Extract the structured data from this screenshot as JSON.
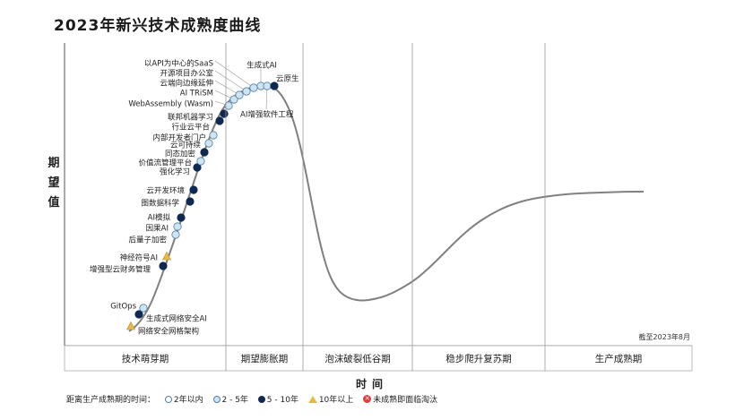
{
  "title": "2023年新兴技术成熟度曲线",
  "y_axis_label": "期望值",
  "x_axis_label": "时间",
  "note": "截至2023年8月",
  "legend": {
    "prefix": "距离生产成熟期的时间：",
    "items": [
      {
        "label": "2年以内",
        "symbol": "circle-white"
      },
      {
        "label": "2 - 5年",
        "symbol": "circle-light"
      },
      {
        "label": "5 - 10年",
        "symbol": "circle-dark"
      },
      {
        "label": "10年以上",
        "symbol": "triangle"
      },
      {
        "label": "未成熟即面临淘汰",
        "symbol": "x-circle"
      }
    ]
  },
  "colors": {
    "curve": "#808080",
    "circle_white": "#ffffff",
    "circle_light": "#cfe4f2",
    "circle_dark": "#0f2a50",
    "triangle": "#e7b94c",
    "obsolete": "#e23b3b",
    "outline": "#4f7fa2"
  },
  "chart_data": {
    "type": "scatter",
    "phases": [
      "技术萌芽期",
      "期望膨胀期",
      "泡沫破裂低谷期",
      "稳步爬升复苏期",
      "生产成熟期"
    ],
    "points": [
      {
        "label": "网络安全网格架构",
        "phase": "技术萌芽期",
        "timeline": "10年以上"
      },
      {
        "label": "生成式网络安全AI",
        "phase": "技术萌芽期",
        "timeline": "5 - 10年"
      },
      {
        "label": "GitOps",
        "phase": "技术萌芽期",
        "timeline": "2 - 5年"
      },
      {
        "label": "增强型云财务管理",
        "phase": "技术萌芽期",
        "timeline": "5 - 10年"
      },
      {
        "label": "神经符号AI",
        "phase": "技术萌芽期",
        "timeline": "10年以上"
      },
      {
        "label": "后量子加密",
        "phase": "技术萌芽期",
        "timeline": "2 - 5年"
      },
      {
        "label": "因果AI",
        "phase": "技术萌芽期",
        "timeline": "2 - 5年"
      },
      {
        "label": "AI模拟",
        "phase": "技术萌芽期",
        "timeline": "5 - 10年"
      },
      {
        "label": "图数据科学",
        "phase": "技术萌芽期",
        "timeline": "5 - 10年"
      },
      {
        "label": "云开发环境",
        "phase": "技术萌芽期",
        "timeline": "5 - 10年"
      },
      {
        "label": "强化学习",
        "phase": "技术萌芽期",
        "timeline": "5 - 10年"
      },
      {
        "label": "价值流管理平台",
        "phase": "技术萌芽期",
        "timeline": "2 - 5年"
      },
      {
        "label": "同态加密",
        "phase": "技术萌芽期",
        "timeline": "5 - 10年"
      },
      {
        "label": "云可持续",
        "phase": "技术萌芽期",
        "timeline": "2 - 5年"
      },
      {
        "label": "内部开发者门户",
        "phase": "技术萌芽期",
        "timeline": "2 - 5年"
      },
      {
        "label": "行业云平台",
        "phase": "技术萌芽期",
        "timeline": "5 - 10年"
      },
      {
        "label": "联邦机器学习",
        "phase": "技术萌芽期",
        "timeline": "5 - 10年"
      },
      {
        "label": "WebAssembly (Wasm)",
        "phase": "期望膨胀期",
        "timeline": "2 - 5年"
      },
      {
        "label": "AI TRiSM",
        "phase": "期望膨胀期",
        "timeline": "2 - 5年"
      },
      {
        "label": "云端向边缘延伸",
        "phase": "期望膨胀期",
        "timeline": "2 - 5年"
      },
      {
        "label": "开源项目办公室",
        "phase": "期望膨胀期",
        "timeline": "2 - 5年"
      },
      {
        "label": "以API为中心的SaaS",
        "phase": "期望膨胀期",
        "timeline": "2 - 5年"
      },
      {
        "label": "生成式AI",
        "phase": "期望膨胀期",
        "timeline": "2 - 5年"
      },
      {
        "label": "AI增强软件工程",
        "phase": "期望膨胀期",
        "timeline": "2 - 5年"
      },
      {
        "label": "云原生",
        "phase": "期望膨胀期",
        "timeline": "5 - 10年"
      }
    ]
  }
}
